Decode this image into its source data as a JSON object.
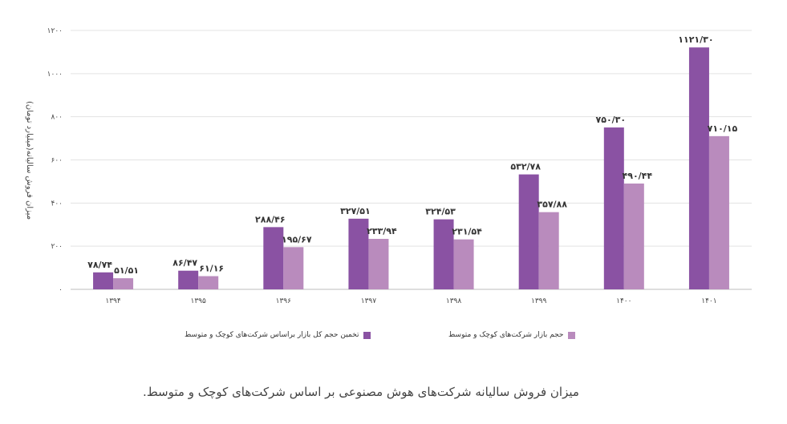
{
  "chart_data": {
    "type": "bar",
    "ylabel": "میزان فروش سالیانه(میلیارد تومان)",
    "ylim": [
      0,
      1200
    ],
    "yticks": [
      "۰",
      "۲۰۰",
      "۴۰۰",
      "۶۰۰",
      "۸۰۰",
      "۱۰۰۰",
      "۱۲۰۰"
    ],
    "categories": [
      "۱۳۹۴",
      "۱۳۹۵",
      "۱۳۹۶",
      "۱۳۹۷",
      "۱۳۹۸",
      "۱۳۹۹",
      "۱۴۰۰",
      "۱۴۰۱"
    ],
    "grid": true,
    "legend_position": "bottom",
    "series": [
      {
        "name": "تخمین حجم کل بازار براساس شرکت‌های کوچک و متوسط",
        "color": "#8a52a3",
        "values": [
          78.74,
          86.47,
          288.46,
          327.51,
          324.53,
          532.78,
          750.3,
          1121.3
        ],
        "labels": [
          "۷۸/۷۴",
          "۸۶/۴۷",
          "۲۸۸/۴۶",
          "۳۲۷/۵۱",
          "۳۲۴/۵۳",
          "۵۳۲/۷۸",
          "۷۵۰/۳۰",
          "۱۱۲۱/۳۰"
        ]
      },
      {
        "name": "حجم بازار شرکت‌های کوچک و متوسط",
        "color": "#b98bbd",
        "values": [
          51.51,
          61.16,
          195.67,
          233.94,
          231.54,
          357.88,
          490.44,
          710.15
        ],
        "labels": [
          "۵۱/۵۱",
          "۶۱/۱۶",
          "۱۹۵/۶۷",
          "۲۳۳/۹۴",
          "۲۳۱/۵۴",
          "۳۵۷/۸۸",
          "۴۹۰/۴۴",
          "۷۱۰/۱۵"
        ]
      }
    ]
  },
  "caption": "میزان فروش سالیانه شرکت‌های هوش مصنوعی بر اساس شرکت‌های کوچک و متوسط."
}
